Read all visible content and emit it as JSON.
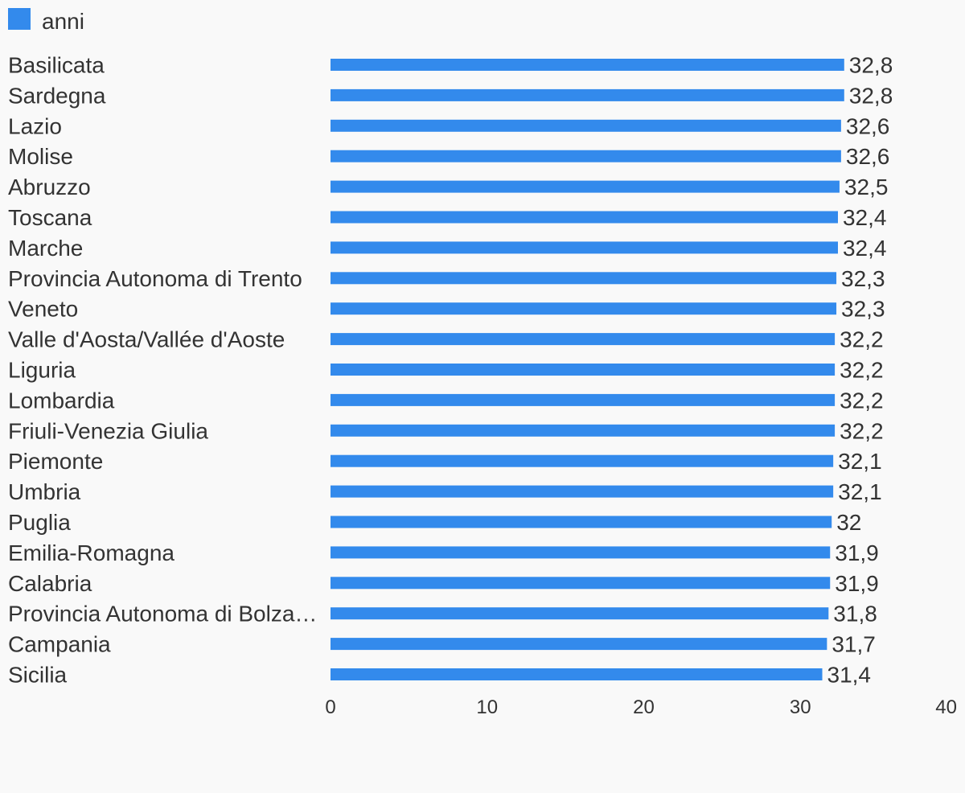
{
  "colors": {
    "bar": "#338aec",
    "text": "#333333",
    "background": "#f9f9f9"
  },
  "chart_data": {
    "type": "bar",
    "orientation": "horizontal",
    "legend": {
      "position": "top-left",
      "entries": [
        "anni"
      ]
    },
    "xlim": [
      0,
      40
    ],
    "x_ticks": [
      "0",
      "10",
      "20",
      "30",
      "40"
    ],
    "grid": false,
    "categories": [
      "Basilicata",
      "Sardegna",
      "Lazio",
      "Molise",
      "Abruzzo",
      "Toscana",
      "Marche",
      "Provincia Autonoma di Trento",
      "Veneto",
      "Valle d'Aosta/Vallée d'Aoste",
      "Liguria",
      "Lombardia",
      "Friuli-Venezia Giulia",
      "Piemonte",
      "Umbria",
      "Puglia",
      "Emilia-Romagna",
      "Calabria",
      "Provincia Autonoma di Bolza…",
      "Campania",
      "Sicilia"
    ],
    "series": [
      {
        "name": "anni",
        "values": [
          32.8,
          32.8,
          32.6,
          32.6,
          32.5,
          32.4,
          32.4,
          32.3,
          32.3,
          32.2,
          32.2,
          32.2,
          32.2,
          32.1,
          32.1,
          32.0,
          31.9,
          31.9,
          31.8,
          31.7,
          31.4
        ],
        "labels": [
          "32,8",
          "32,8",
          "32,6",
          "32,6",
          "32,5",
          "32,4",
          "32,4",
          "32,3",
          "32,3",
          "32,2",
          "32,2",
          "32,2",
          "32,2",
          "32,1",
          "32,1",
          "32",
          "31,9",
          "31,9",
          "31,8",
          "31,7",
          "31,4"
        ]
      }
    ]
  }
}
